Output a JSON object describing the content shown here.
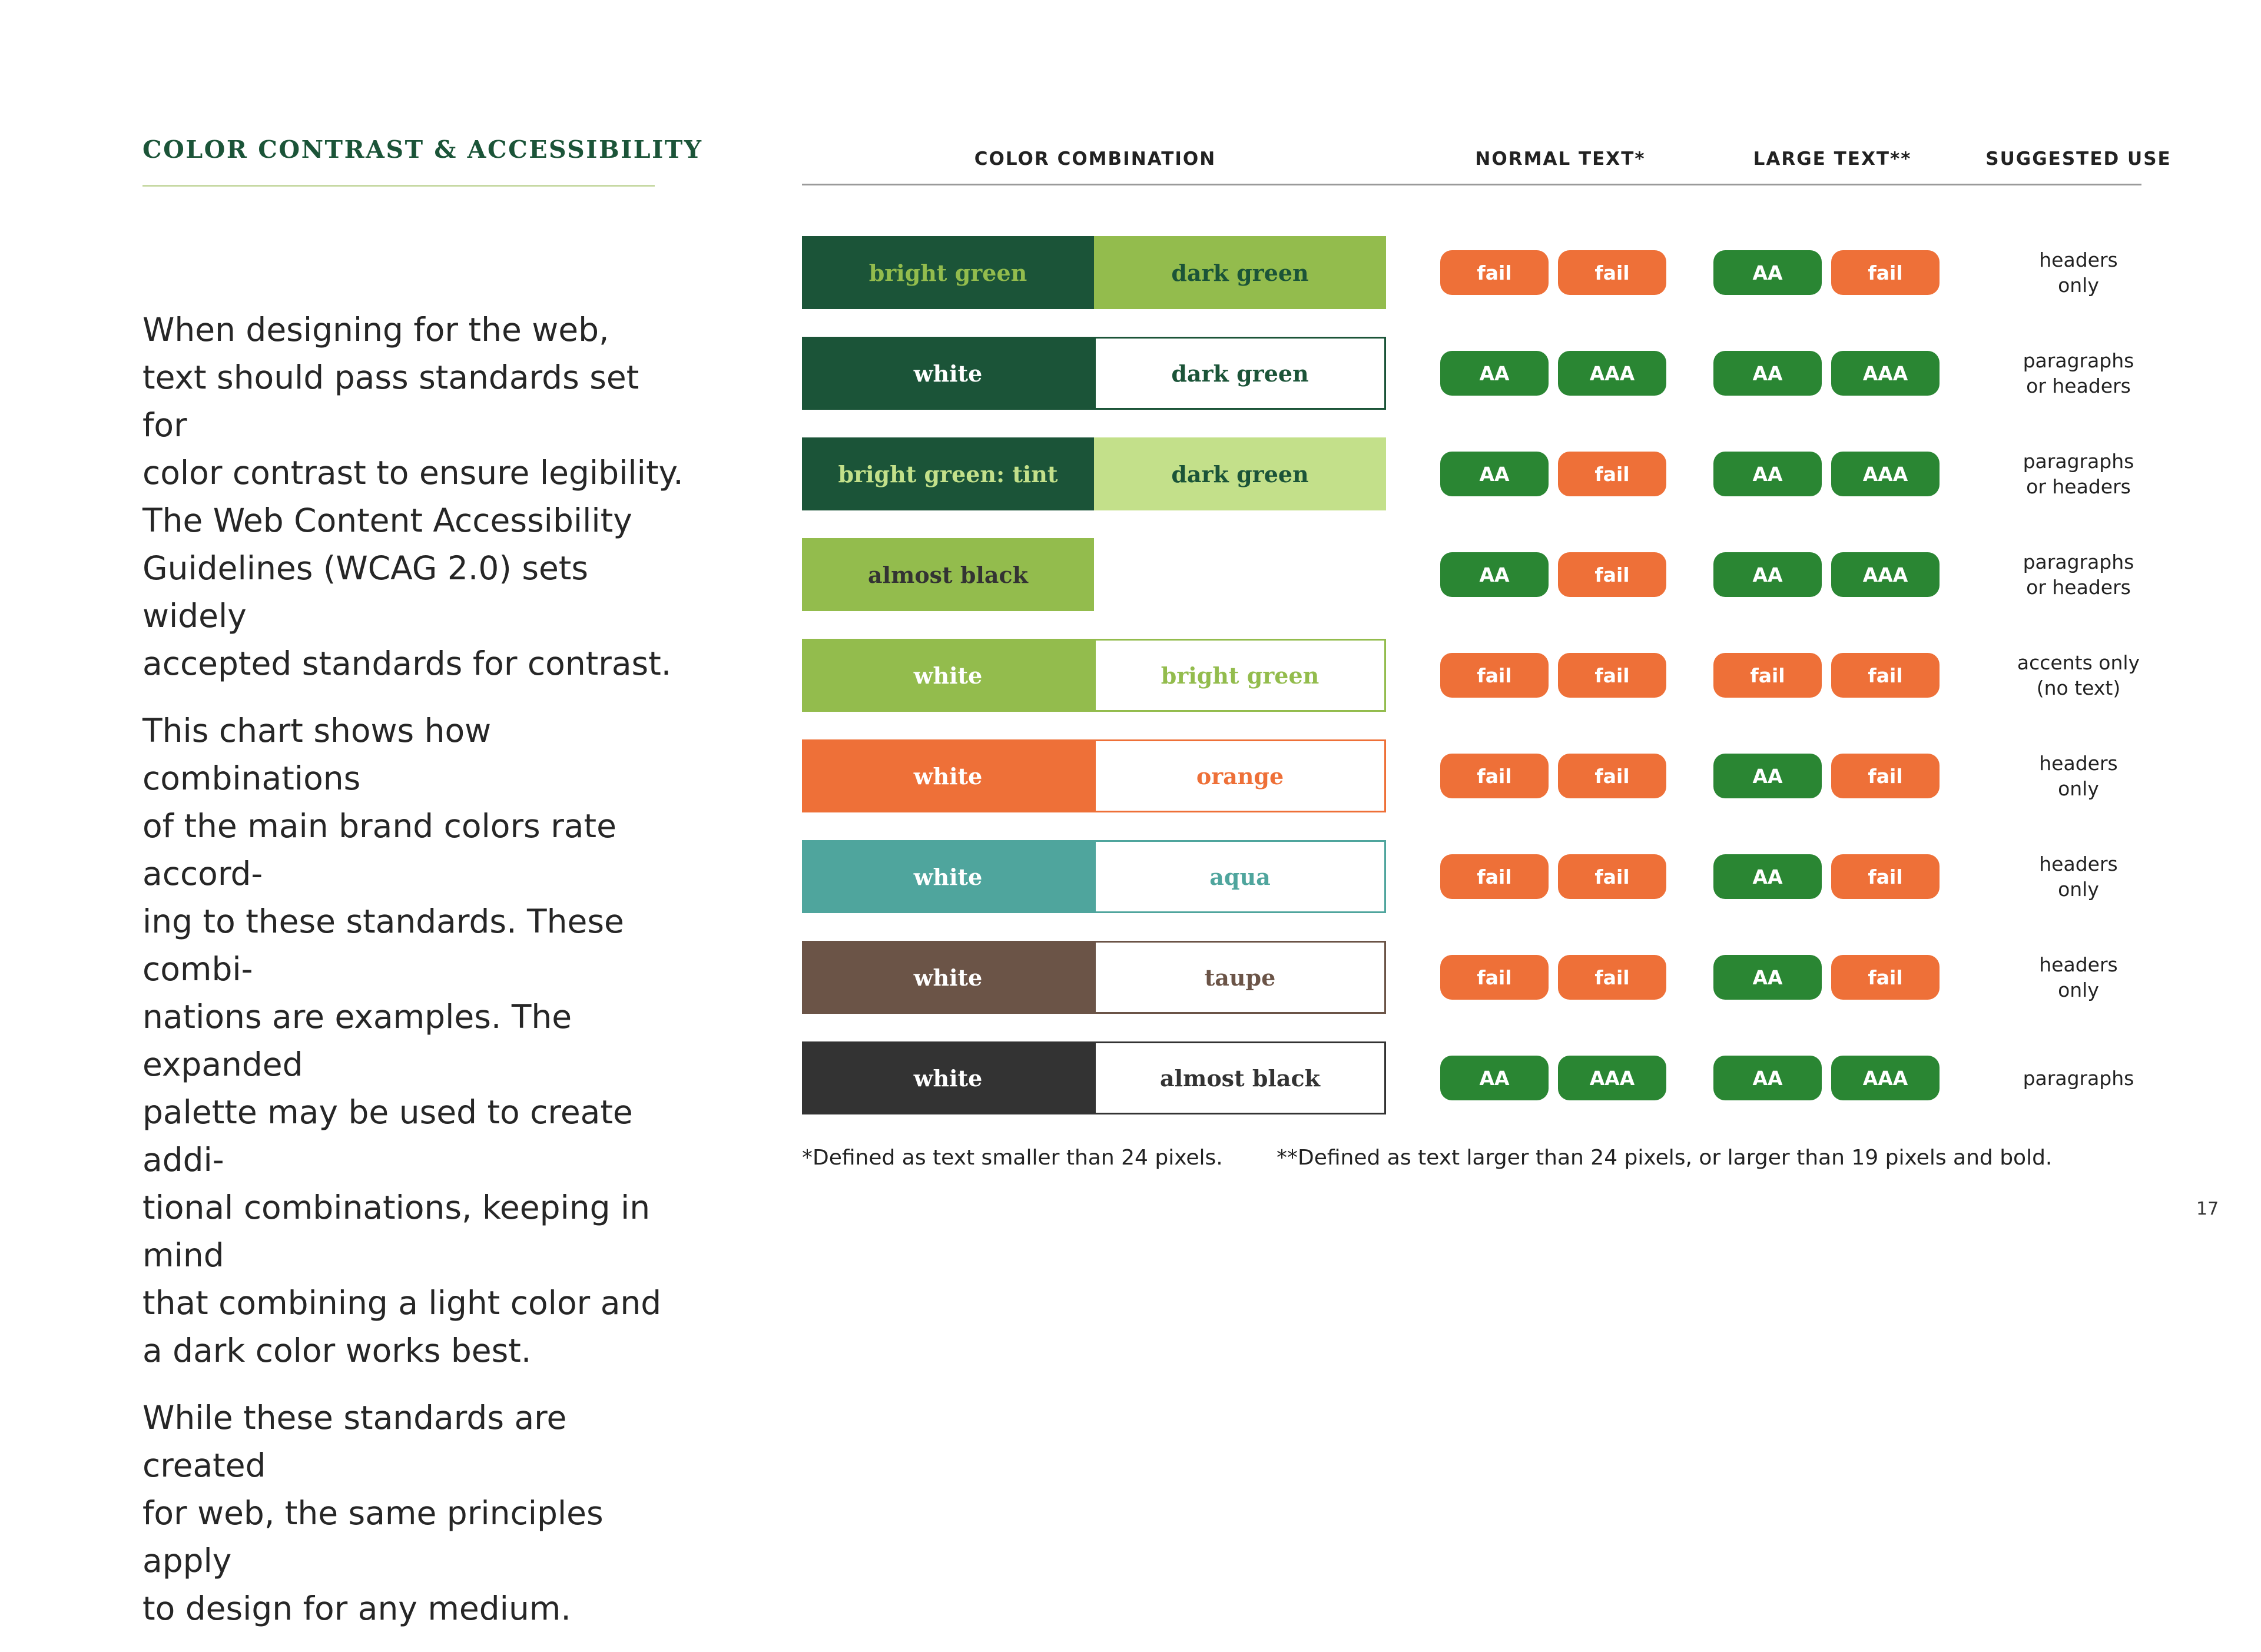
{
  "title": "COLOR CONTRAST & ACCESSIBILITY",
  "intro": [
    "When designing for the web,\ntext should pass standards set for\ncolor contrast to ensure legibility.\nThe Web Content Accessibility\nGuidelines (WCAG 2.0) sets widely\naccepted standards for contrast.",
    "This chart shows how combinations\nof the main brand colors rate accord-\ning to these standards. These combi-\nnations are examples. The expanded\npalette may be used to create addi-\ntional combinations, keeping in mind\nthat combining a light color and\na dark color works best.",
    "While these standards are created\nfor web, the same principles apply\nto design for any medium."
  ],
  "table": {
    "headers": {
      "combination": "COLOR COMBINATION",
      "normal": "NORMAL TEXT*",
      "large": "LARGE TEXT**",
      "use": "SUGGESTED USE"
    },
    "rows": [
      {
        "left": {
          "label": "bright green",
          "bg": "#1b5438",
          "fg": "#93bc4d"
        },
        "right": {
          "label": "dark green",
          "bg": "#93bc4d",
          "fg": "#1b5438",
          "border": "#93bc4d"
        },
        "normal": [
          "fail",
          "fail"
        ],
        "large": [
          "AA",
          "fail"
        ],
        "use": "headers\nonly"
      },
      {
        "left": {
          "label": "white",
          "bg": "#1b5438",
          "fg": "#ffffff"
        },
        "right": {
          "label": "dark green",
          "bg": "#ffffff",
          "fg": "#1b5438",
          "border": "#1b5438"
        },
        "normal": [
          "AA",
          "AAA"
        ],
        "large": [
          "AA",
          "AAA"
        ],
        "use": "paragraphs\nor headers"
      },
      {
        "left": {
          "label": "bright green: tint",
          "bg": "#1b5438",
          "fg": "#c3e08a"
        },
        "right": {
          "label": "dark green",
          "bg": "#c3e08a",
          "fg": "#1b5438",
          "border": "#c3e08a"
        },
        "normal": [
          "AA",
          "fail"
        ],
        "large": [
          "AA",
          "AAA"
        ],
        "use": "paragraphs\nor headers"
      },
      {
        "left": {
          "label": "almost black",
          "bg": "#93bc4d",
          "fg": "#333333"
        },
        "right": null,
        "normal": [
          "AA",
          "fail"
        ],
        "large": [
          "AA",
          "AAA"
        ],
        "use": "paragraphs\nor headers"
      },
      {
        "left": {
          "label": "white",
          "bg": "#93bc4d",
          "fg": "#ffffff"
        },
        "right": {
          "label": "bright green",
          "bg": "#ffffff",
          "fg": "#93bc4d",
          "border": "#93bc4d"
        },
        "normal": [
          "fail",
          "fail"
        ],
        "large": [
          "fail",
          "fail"
        ],
        "use": "accents only\n(no text)"
      },
      {
        "left": {
          "label": "white",
          "bg": "#ee7038",
          "fg": "#ffffff"
        },
        "right": {
          "label": "orange",
          "bg": "#ffffff",
          "fg": "#ee7038",
          "border": "#ee7038"
        },
        "normal": [
          "fail",
          "fail"
        ],
        "large": [
          "AA",
          "fail"
        ],
        "use": "headers\nonly"
      },
      {
        "left": {
          "label": "white",
          "bg": "#4fa59d",
          "fg": "#ffffff"
        },
        "right": {
          "label": "aqua",
          "bg": "#ffffff",
          "fg": "#4fa59d",
          "border": "#4fa59d"
        },
        "normal": [
          "fail",
          "fail"
        ],
        "large": [
          "AA",
          "fail"
        ],
        "use": "headers\nonly"
      },
      {
        "left": {
          "label": "white",
          "bg": "#6b5447",
          "fg": "#ffffff"
        },
        "right": {
          "label": "taupe",
          "bg": "#ffffff",
          "fg": "#6b5447",
          "border": "#6b5447"
        },
        "normal": [
          "fail",
          "fail"
        ],
        "large": [
          "AA",
          "fail"
        ],
        "use": "headers\nonly"
      },
      {
        "left": {
          "label": "white",
          "bg": "#333333",
          "fg": "#ffffff"
        },
        "right": {
          "label": "almost black",
          "bg": "#ffffff",
          "fg": "#333333",
          "border": "#333333"
        },
        "normal": [
          "AA",
          "AAA"
        ],
        "large": [
          "AA",
          "AAA"
        ],
        "use": "paragraphs"
      }
    ]
  },
  "footnotes": {
    "normal": "*Defined as text smaller than 24 pixels.",
    "large": "**Defined as text larger than 24 pixels, or larger than 19 pixels and bold."
  },
  "page_number": "17",
  "colors": {
    "pass": "#2a8633",
    "fail": "#ee7038",
    "brand_dark_green": "#1b5438"
  }
}
